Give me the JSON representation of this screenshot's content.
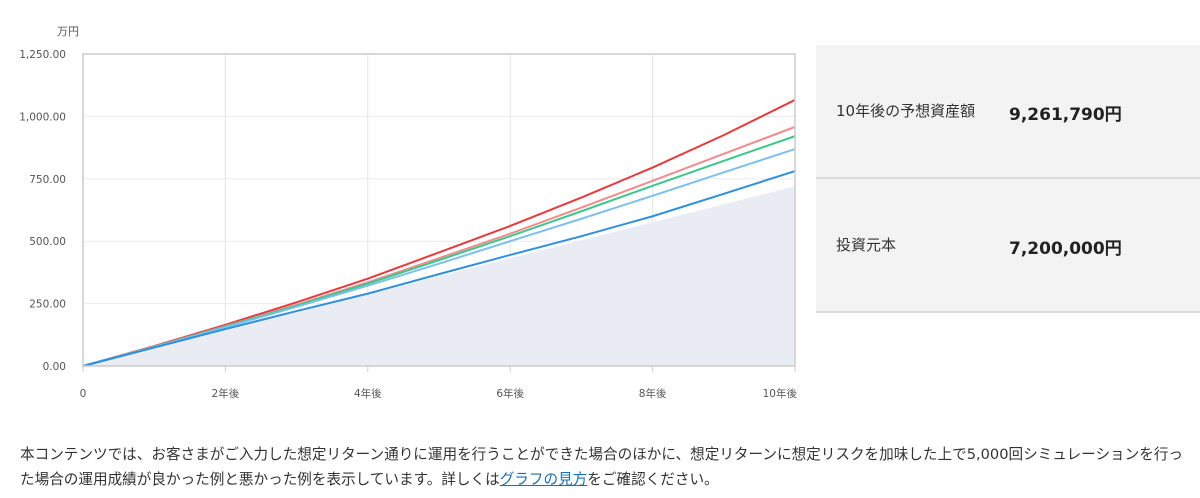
{
  "chart_data": {
    "type": "line",
    "unit_label": "万円",
    "x": [
      0,
      1,
      2,
      3,
      4,
      5,
      6,
      7,
      8,
      9,
      10
    ],
    "x_tick_labels": [
      "0",
      "2年後",
      "4年後",
      "6年後",
      "8年後",
      "10年後"
    ],
    "x_tick_values": [
      0,
      2,
      4,
      6,
      8,
      10
    ],
    "y_tick_labels": [
      "0.00",
      "250.00",
      "500.00",
      "750.00",
      "1,000.00",
      "1,250.00"
    ],
    "y_tick_values": [
      0,
      250,
      500,
      750,
      1000,
      1250
    ],
    "ylim": [
      0,
      1250
    ],
    "xlim": [
      0,
      10
    ],
    "grid": true,
    "area": {
      "values": [
        0,
        72,
        144,
        216,
        288,
        360,
        432,
        504,
        576,
        648,
        720
      ],
      "color": "#e9edf3"
    },
    "series": [
      {
        "values": [
          0,
          80,
          165,
          255,
          350,
          455,
          561,
          675,
          795,
          925,
          1066
        ],
        "color": "#e8393d"
      },
      {
        "values": [
          0,
          78,
          160,
          245,
          335,
          432,
          530,
          635,
          742,
          850,
          958
        ],
        "color": "#f28b8d"
      },
      {
        "values": [
          0,
          77,
          158,
          242,
          330,
          424,
          520,
          620,
          722,
          822,
          921
        ],
        "color": "#3cc88a"
      },
      {
        "values": [
          0,
          76,
          155,
          237,
          322,
          410,
          500,
          590,
          682,
          776,
          869
        ],
        "color": "#7cc0ee"
      },
      {
        "values": [
          0,
          74,
          148,
          220,
          290,
          368,
          445,
          520,
          600,
          690,
          781
        ],
        "color": "#2f8fe0"
      }
    ]
  },
  "summary": {
    "future_label": "10年後の予想資産額",
    "future_value": "9,261,790円",
    "principal_label": "投資元本",
    "principal_value": "7,200,000円"
  },
  "note": {
    "text_before": "本コンテンツでは、お客さまがご入力した想定リターン通りに運用を行うことができた場合のほかに、想定リターンに想定リスクを加味した上で5,000回シミュレーションを行った場合の運用成績が良かった例と悪かった例を表示しています。詳しくは",
    "link": "グラフの見方",
    "text_after": "をご確認ください。"
  }
}
